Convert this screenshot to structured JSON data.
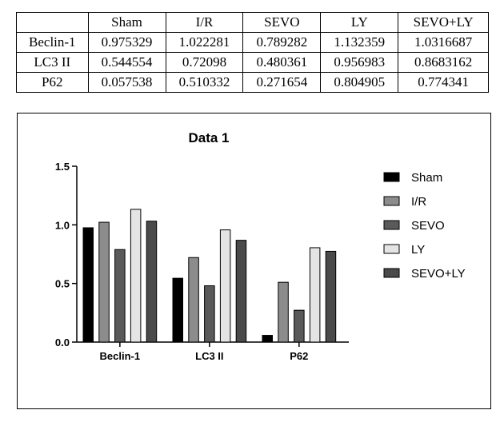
{
  "table": {
    "columns": [
      "",
      "Sham",
      "I/R",
      "SEVO",
      "LY",
      "SEVO+LY"
    ],
    "rows": [
      {
        "label": "Beclin-1",
        "values": [
          "0.975329",
          "1.022281",
          "0.789282",
          "1.132359",
          "1.0316687"
        ]
      },
      {
        "label": "LC3 II",
        "values": [
          "0.544554",
          "0.72098",
          "0.480361",
          "0.956983",
          "0.8683162"
        ]
      },
      {
        "label": "P62",
        "values": [
          "0.057538",
          "0.510332",
          "0.271654",
          "0.804905",
          "0.774341"
        ]
      }
    ]
  },
  "chart_data": {
    "type": "bar",
    "title": "Data 1",
    "xlabel": "",
    "ylabel": "",
    "categories": [
      "Beclin-1",
      "LC3 II",
      "P62"
    ],
    "ylim": [
      0,
      1.5
    ],
    "yticks": [
      0.0,
      0.5,
      1.0,
      1.5
    ],
    "ytick_labels": [
      "0.0",
      "0.5",
      "1.0",
      "1.5"
    ],
    "legend_position": "right",
    "series": [
      {
        "name": "Sham",
        "values": [
          0.975329,
          0.544554,
          0.057538
        ],
        "color": "#000000"
      },
      {
        "name": "I/R",
        "values": [
          1.022281,
          0.72098,
          0.510332
        ],
        "color": "#8c8c8c"
      },
      {
        "name": "SEVO",
        "values": [
          0.789282,
          0.480361,
          0.271654
        ],
        "color": "#5a5a5a"
      },
      {
        "name": "LY",
        "values": [
          1.132359,
          0.956983,
          0.804905
        ],
        "color": "#e4e4e4"
      },
      {
        "name": "SEVO+LY",
        "values": [
          1.0316687,
          0.8683162,
          0.774341
        ],
        "color": "#4a4a4a"
      }
    ]
  }
}
